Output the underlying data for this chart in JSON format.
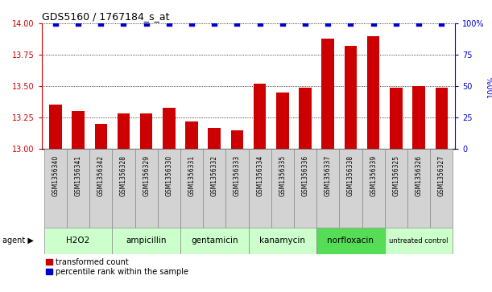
{
  "title": "GDS5160 / 1767184_s_at",
  "samples": [
    "GSM1356340",
    "GSM1356341",
    "GSM1356342",
    "GSM1356328",
    "GSM1356329",
    "GSM1356330",
    "GSM1356331",
    "GSM1356332",
    "GSM1356333",
    "GSM1356334",
    "GSM1356335",
    "GSM1356336",
    "GSM1356337",
    "GSM1356338",
    "GSM1356339",
    "GSM1356325",
    "GSM1356326",
    "GSM1356327"
  ],
  "bar_values": [
    13.35,
    13.3,
    13.2,
    13.28,
    13.28,
    13.33,
    13.22,
    13.17,
    13.15,
    13.52,
    13.45,
    13.49,
    13.88,
    13.82,
    13.9,
    13.49,
    13.5,
    13.49
  ],
  "percentile_values": [
    100,
    100,
    100,
    100,
    100,
    100,
    100,
    100,
    100,
    100,
    100,
    100,
    100,
    100,
    100,
    100,
    100,
    100
  ],
  "agents": [
    {
      "label": "H2O2",
      "start": 0,
      "end": 3,
      "color": "#ccffcc"
    },
    {
      "label": "ampicillin",
      "start": 3,
      "end": 6,
      "color": "#ccffcc"
    },
    {
      "label": "gentamicin",
      "start": 6,
      "end": 9,
      "color": "#ccffcc"
    },
    {
      "label": "kanamycin",
      "start": 9,
      "end": 12,
      "color": "#ccffcc"
    },
    {
      "label": "norfloxacin",
      "start": 12,
      "end": 15,
      "color": "#55dd55"
    },
    {
      "label": "untreated control",
      "start": 15,
      "end": 18,
      "color": "#ccffcc"
    }
  ],
  "ylim_left": [
    13.0,
    14.0
  ],
  "ylim_right": [
    0,
    100
  ],
  "yticks_left": [
    13.0,
    13.25,
    13.5,
    13.75,
    14.0
  ],
  "yticks_right": [
    0,
    25,
    50,
    75,
    100
  ],
  "bar_color": "#cc0000",
  "percentile_color": "#0000cc",
  "sample_bg": "#d3d3d3",
  "agent_label": "agent",
  "legend_bar": "transformed count",
  "legend_perc": "percentile rank within the sample"
}
